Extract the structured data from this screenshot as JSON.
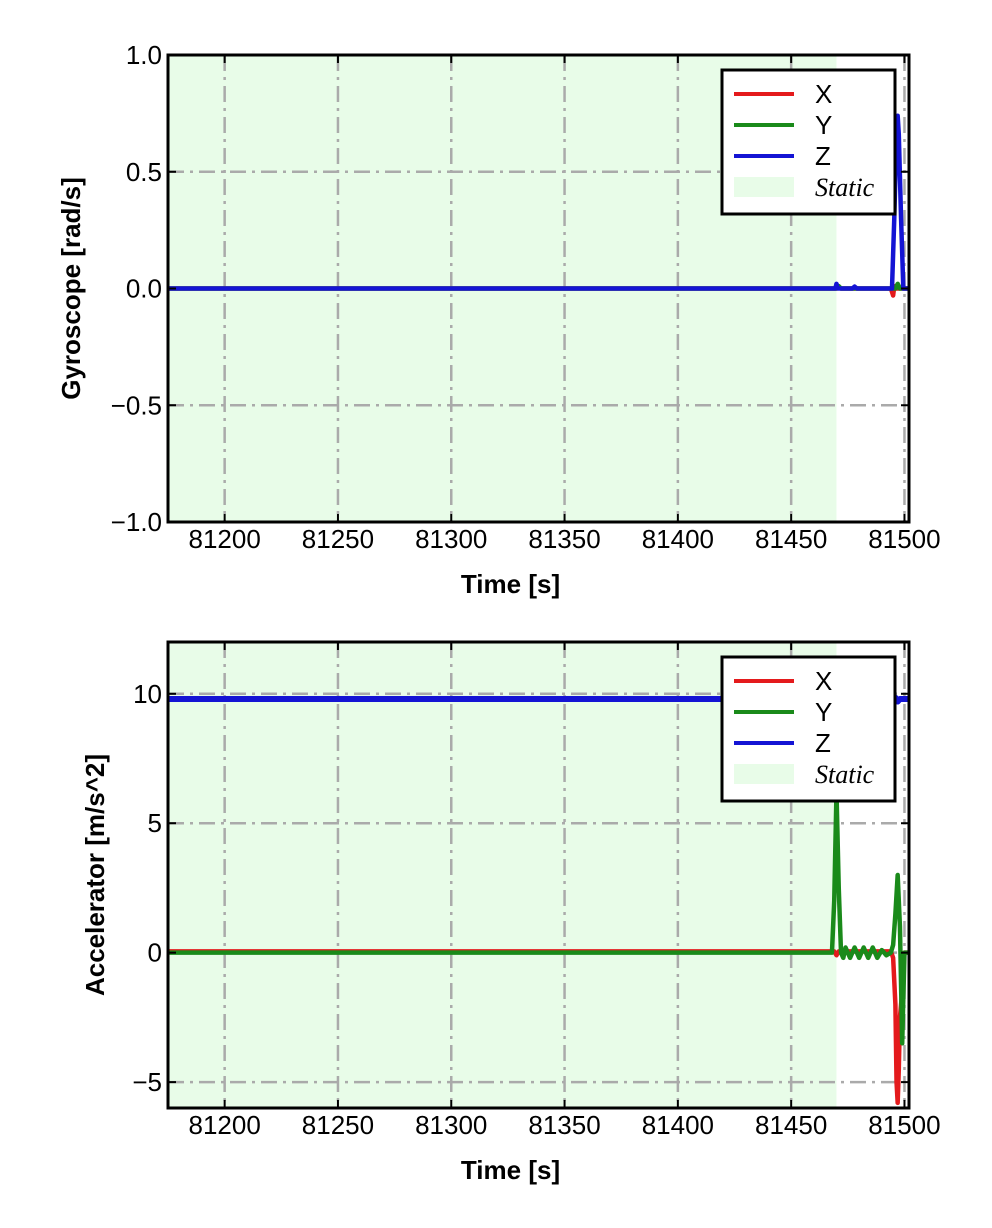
{
  "chart_data": [
    {
      "type": "line",
      "xlabel": "Time [s]",
      "ylabel": "Gyroscope [rad/s]",
      "xlim": [
        81175,
        81502
      ],
      "ylim": [
        -1.0,
        1.0
      ],
      "xticks": [
        81200,
        81250,
        81300,
        81350,
        81400,
        81450,
        81500
      ],
      "yticks": [
        -1.0,
        -0.5,
        0.0,
        0.5,
        1.0
      ],
      "xtick_labels": [
        "81200",
        "81250",
        "81300",
        "81350",
        "81400",
        "81450",
        "81500"
      ],
      "ytick_labels": [
        "−1.0",
        "−0.5",
        "0.0",
        "0.5",
        "1.0"
      ],
      "grid": true,
      "legend_position": "top-right",
      "static_region": {
        "name": "Static",
        "x": [
          81175,
          81470
        ],
        "color": "#e8fce8"
      },
      "series": [
        {
          "name": "X",
          "color": "#e41a1c",
          "x": [
            81175,
            81470,
            81471,
            81472,
            81494,
            81495,
            81495.5,
            81496,
            81502
          ],
          "y": [
            0.0,
            0.0,
            0.005,
            0.0,
            0.0,
            -0.03,
            0.01,
            0.0,
            0.0
          ]
        },
        {
          "name": "Y",
          "color": "#1a8a1a",
          "x": [
            81175,
            81470,
            81471,
            81472,
            81496,
            81497,
            81498,
            81502
          ],
          "y": [
            0.0,
            0.0,
            0.01,
            0.0,
            0.0,
            0.02,
            0.0,
            0.0
          ]
        },
        {
          "name": "Z",
          "color": "#1414d4",
          "x": [
            81175,
            81469.5,
            81470,
            81470.5,
            81471,
            81477,
            81478,
            81479,
            81494.5,
            81495.5,
            81496.5,
            81497,
            81497.5,
            81498.5,
            81499.5,
            81502
          ],
          "y": [
            0.0,
            0.0,
            0.02,
            0.0,
            0.0,
            0.0,
            0.008,
            0.0,
            0.0,
            0.3,
            0.68,
            0.74,
            0.66,
            0.3,
            0.0,
            0.0
          ]
        }
      ]
    },
    {
      "type": "line",
      "xlabel": "Time [s]",
      "ylabel": "Accelerator [m/s^2]",
      "xlim": [
        81175,
        81502
      ],
      "ylim": [
        -6.0,
        12.0
      ],
      "xticks": [
        81200,
        81250,
        81300,
        81350,
        81400,
        81450,
        81500
      ],
      "yticks": [
        -5,
        0,
        5,
        10
      ],
      "xtick_labels": [
        "81200",
        "81250",
        "81300",
        "81350",
        "81400",
        "81450",
        "81500"
      ],
      "ytick_labels": [
        "−5",
        "0",
        "5",
        "10"
      ],
      "grid": true,
      "legend_position": "top-right",
      "static_region": {
        "name": "Static",
        "x": [
          81175,
          81470
        ],
        "color": "#e8fce8"
      },
      "series": [
        {
          "name": "X",
          "color": "#e41a1c",
          "x": [
            81175,
            81469,
            81470,
            81471,
            81473,
            81494,
            81495,
            81496,
            81496.5,
            81497,
            81497.5,
            81498,
            81499,
            81500,
            81502
          ],
          "y": [
            0.05,
            0.05,
            -0.1,
            0.05,
            0.05,
            0.05,
            -0.2,
            -2.0,
            -5.0,
            -5.8,
            -4.5,
            -2.5,
            -1.5,
            0.0,
            0.0
          ]
        },
        {
          "name": "Y",
          "color": "#1a8a1a",
          "x": [
            81175,
            81468,
            81469,
            81470,
            81471,
            81472,
            81473,
            81474,
            81476,
            81478,
            81480,
            81482,
            81484,
            81486,
            81488,
            81490,
            81492,
            81494,
            81495,
            81496,
            81497,
            81498,
            81499,
            81500,
            81502
          ],
          "y": [
            0.0,
            0.0,
            2.0,
            6.2,
            2.5,
            0.0,
            -0.2,
            0.2,
            -0.2,
            0.2,
            -0.2,
            0.2,
            -0.2,
            0.2,
            -0.2,
            0.1,
            -0.1,
            0.0,
            0.3,
            1.5,
            3.0,
            1.0,
            -3.5,
            0.0,
            0.0
          ]
        },
        {
          "name": "Z",
          "color": "#1414d4",
          "x": [
            81175,
            81494,
            81495,
            81496,
            81497,
            81498,
            81502
          ],
          "y": [
            9.8,
            9.8,
            9.6,
            9.85,
            9.7,
            9.8,
            9.8
          ]
        }
      ]
    }
  ]
}
